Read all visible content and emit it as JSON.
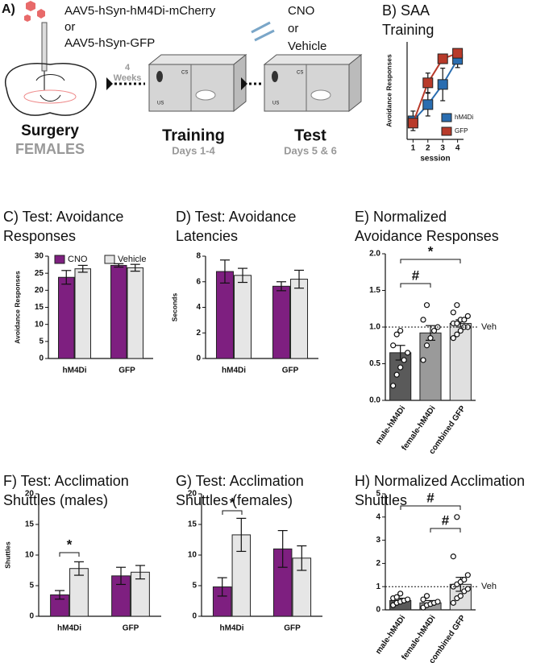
{
  "diagram": {
    "label": "A)",
    "virus_line1": "AAV5-hSyn-hM4Di-mCherry",
    "virus_or": "or",
    "virus_line2": "AAV5-hSyn-GFP",
    "delay_number": "4",
    "delay_unit": "Weeks",
    "drug_line1": "CNO",
    "drug_or": "or",
    "drug_line2": "Vehicle",
    "surgery": "Surgery",
    "females": "FEMALES",
    "training": "Training",
    "training_days": "Days 1-4",
    "test": "Test",
    "test_days": "Days 5 & 6",
    "box_labels": [
      "CS",
      "US"
    ]
  },
  "chart_data": [
    {
      "type": "line",
      "title": [
        "B) SAA",
        "Training"
      ],
      "x": [
        1,
        2,
        3,
        4
      ],
      "xlim": [
        0.6,
        4.4
      ],
      "xticks": [
        1,
        2,
        3,
        4
      ],
      "xlabel": "session",
      "ylabel": "Avoidance Responses",
      "ylim": [
        0,
        30
      ],
      "legend": "lower right",
      "series": [
        {
          "name": "hM4Di",
          "color": "#2a6db0",
          "values": [
            5.7,
            10.7,
            16.9,
            24.6
          ],
          "errors": [
            3,
            3.5,
            5,
            2.5
          ]
        },
        {
          "name": "GFP",
          "color": "#b83a2a",
          "values": [
            5,
            17.4,
            24.8,
            26.5
          ],
          "errors": [
            1,
            3,
            1,
            1
          ]
        }
      ]
    },
    {
      "type": "bar",
      "title": [
        "C) Test: Avoidance",
        "Responses"
      ],
      "categories": [
        "hM4Di",
        "GFP"
      ],
      "ylabel": "Avoidance Responses",
      "ylim": [
        0,
        30
      ],
      "yticks": [
        0,
        5,
        10,
        15,
        20,
        25,
        30
      ],
      "legend": "upper left",
      "series": [
        {
          "name": "CNO",
          "color": "#7e1f80",
          "values": [
            23.8,
            27.3
          ],
          "errors": [
            2,
            0.5
          ]
        },
        {
          "name": "Vehicle",
          "color": "#e6e6e6",
          "values": [
            26.3,
            26.6
          ],
          "errors": [
            1,
            1
          ]
        }
      ]
    },
    {
      "type": "bar",
      "title": [
        "D) Test: Avoidance",
        "Latencies"
      ],
      "categories": [
        "hM4Di",
        "GFP"
      ],
      "ylabel": "Seconds",
      "ylim": [
        0,
        8
      ],
      "yticks": [
        0,
        2,
        4,
        6,
        8
      ],
      "series": [
        {
          "name": "CNO",
          "color": "#7e1f80",
          "values": [
            6.8,
            5.65
          ],
          "errors": [
            0.9,
            0.35
          ]
        },
        {
          "name": "Vehicle",
          "color": "#e6e6e6",
          "values": [
            6.5,
            6.2
          ],
          "errors": [
            0.55,
            0.7
          ]
        }
      ]
    },
    {
      "type": "bar",
      "title": [
        "E) Normalized",
        "Avoidance Responses"
      ],
      "categories": [
        "male-hM4Di",
        "female-hM4Di",
        "combined GFP"
      ],
      "ylim": [
        0,
        2
      ],
      "yticks": [
        {
          "value": 0,
          "label": "0.0"
        },
        0.5,
        {
          "value": 1,
          "label": "1.0"
        },
        1.5,
        {
          "value": 2,
          "label": "2.0"
        }
      ],
      "values": [
        0.65,
        0.92,
        1.05
      ],
      "errors": [
        0.1,
        0.1,
        0.05
      ],
      "colors": [
        "#5a5a5a",
        "#9a9a9a",
        "#e0e0e0"
      ],
      "points": [
        [
          0.2,
          0.35,
          0.45,
          0.55,
          0.65,
          0.75,
          0.9,
          0.95
        ],
        [
          0.55,
          0.75,
          0.85,
          0.95,
          1.0,
          1.1,
          1.3
        ],
        [
          0.85,
          0.9,
          0.95,
          1.0,
          1.0,
          1.05,
          1.05,
          1.1,
          1.1,
          1.15,
          1.2,
          1.3
        ]
      ],
      "ref_line": {
        "value": 1,
        "label": "Veh"
      },
      "annotations": [
        "#",
        "*"
      ]
    },
    {
      "type": "bar",
      "title": [
        "F) Test: Acclimation",
        "Shuttles (males)"
      ],
      "categories": [
        "hM4Di",
        "GFP"
      ],
      "ylabel": "Shuttles",
      "ylim": [
        0,
        20
      ],
      "yticks": [
        0,
        5,
        10,
        15,
        20
      ],
      "series": [
        {
          "name": "CNO",
          "color": "#7e1f80",
          "values": [
            3.5,
            6.6
          ],
          "errors": [
            0.7,
            1.4
          ]
        },
        {
          "name": "Vehicle",
          "color": "#e6e6e6",
          "values": [
            7.8,
            7.2
          ],
          "errors": [
            1.1,
            1.1
          ]
        }
      ],
      "annotations": [
        "*"
      ]
    },
    {
      "type": "bar",
      "title": [
        "G) Test: Acclimation",
        "Shuttles (females)"
      ],
      "categories": [
        "hM4Di",
        "GFP"
      ],
      "ylim": [
        0,
        20
      ],
      "yticks": [
        0,
        5,
        10,
        15,
        20
      ],
      "series": [
        {
          "name": "CNO",
          "color": "#7e1f80",
          "values": [
            4.8,
            11
          ],
          "errors": [
            1.5,
            3
          ]
        },
        {
          "name": "Vehicle",
          "color": "#e6e6e6",
          "values": [
            13.3,
            9.5
          ],
          "errors": [
            2.7,
            2
          ]
        }
      ],
      "annotations": [
        "*"
      ]
    },
    {
      "type": "bar",
      "title": [
        "H) Normalized Acclimation",
        "Shuttles"
      ],
      "categories": [
        "male-hM4Di",
        "female-hM4Di",
        "combined GFP"
      ],
      "ylim": [
        0,
        5
      ],
      "yticks": [
        0,
        1,
        2,
        3,
        4,
        5
      ],
      "values": [
        0.4,
        0.3,
        1.1
      ],
      "errors": [
        0.1,
        0.1,
        0.3
      ],
      "colors": [
        "#5a5a5a",
        "#9a9a9a",
        "#e0e0e0"
      ],
      "points": [
        [
          0.2,
          0.3,
          0.35,
          0.4,
          0.45,
          0.5,
          0.55,
          0.7
        ],
        [
          0.1,
          0.2,
          0.25,
          0.3,
          0.35,
          0.45,
          0.6
        ],
        [
          0.3,
          0.5,
          0.6,
          0.8,
          0.9,
          1.0,
          1.1,
          1.2,
          1.3,
          1.5,
          2.3,
          4.0
        ]
      ],
      "ref_line": {
        "value": 1,
        "label": "Veh"
      },
      "annotations": [
        "#",
        "#"
      ]
    }
  ]
}
